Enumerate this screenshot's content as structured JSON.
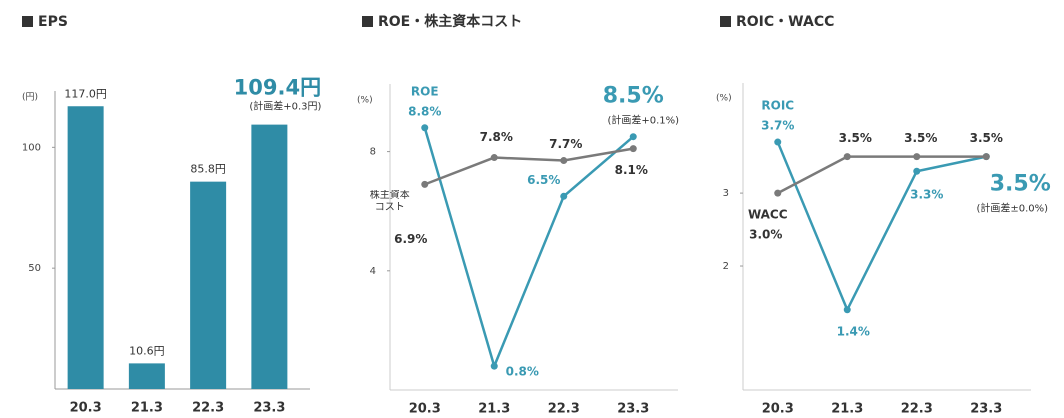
{
  "chart_data": [
    {
      "type": "bar",
      "title": "EPS",
      "y_label": "(円)",
      "categories": [
        "20.3",
        "21.3",
        "22.3",
        "23.3"
      ],
      "values": [
        117.0,
        10.6,
        85.8,
        109.4
      ],
      "value_labels": [
        "117.0円",
        "10.6円",
        "85.8円",
        "109.4円"
      ],
      "color": "#2f8ca6",
      "ylim": [
        0,
        120
      ],
      "yticks": [
        50,
        100
      ],
      "annotation": "(計画差+0.3円)"
    },
    {
      "type": "line",
      "title": "ROE・株主資本コスト",
      "y_label": "(%)",
      "categories": [
        "20.3",
        "21.3",
        "22.3",
        "23.3"
      ],
      "series": [
        {
          "name": "ROE",
          "color": "#3a9ab3",
          "values": [
            8.8,
            0.8,
            6.5,
            8.5
          ],
          "value_labels": [
            "8.8%",
            "0.8%",
            "6.5%",
            "8.5%"
          ]
        },
        {
          "name": "株主資本コスト",
          "color": "#7a7a7a",
          "values": [
            6.9,
            7.8,
            7.7,
            8.1
          ],
          "value_labels": [
            "6.9%",
            "7.8%",
            "7.7%",
            "8.1%"
          ]
        }
      ],
      "ylim": [
        0,
        10
      ],
      "yticks": [
        4,
        8
      ],
      "annotation": "(計画差+0.1%)"
    },
    {
      "type": "line",
      "title": "ROIC・WACC",
      "y_label": "(%)",
      "categories": [
        "20.3",
        "21.3",
        "22.3",
        "23.3"
      ],
      "series": [
        {
          "name": "ROIC",
          "color": "#3a9ab3",
          "values": [
            3.7,
            1.4,
            3.3,
            3.5
          ],
          "value_labels": [
            "3.7%",
            "1.4%",
            "3.3%",
            "3.5%"
          ]
        },
        {
          "name": "WACC",
          "color": "#7a7a7a",
          "values": [
            3.0,
            3.5,
            3.5,
            3.5
          ],
          "value_labels": [
            "3.0%",
            "3.5%",
            "3.5%",
            "3.5%"
          ]
        }
      ],
      "ylim": [
        0.3,
        4.4
      ],
      "yticks": [
        2,
        3
      ],
      "annotation": "(計画差±0.0%)"
    }
  ]
}
